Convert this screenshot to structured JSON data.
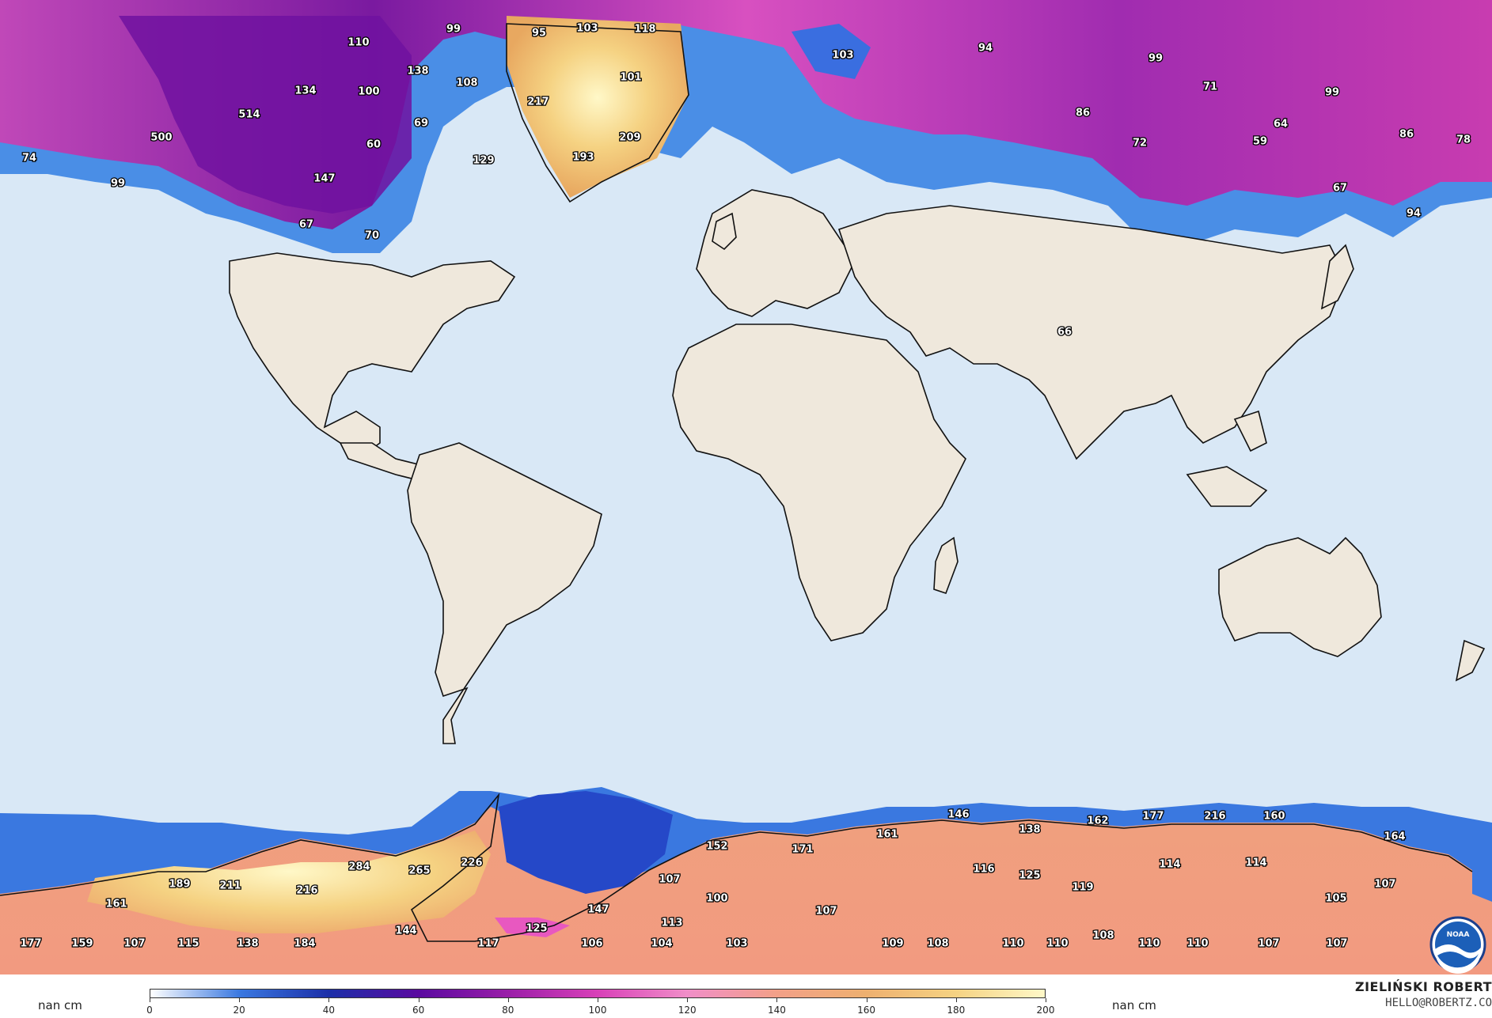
{
  "colors": {
    "ocean": "#d9e8f6",
    "land": "#efe8dc",
    "scale": [
      "#ffffff",
      "#3a78e0",
      "#1c2fa8",
      "#5a0aa0",
      "#9a1ea8",
      "#d840b8",
      "#f08ec8",
      "#f2a088",
      "#eeb070",
      "#f5d282",
      "#fff8c8"
    ]
  },
  "map": {
    "value_labels": [
      {
        "text": "110"
      },
      {
        "text": "99"
      },
      {
        "text": "95"
      },
      {
        "text": "103"
      },
      {
        "text": "118"
      },
      {
        "text": "103"
      },
      {
        "text": "94"
      },
      {
        "text": "99"
      },
      {
        "text": "138"
      },
      {
        "text": "108"
      },
      {
        "text": "101"
      },
      {
        "text": "134"
      },
      {
        "text": "100"
      },
      {
        "text": "217"
      },
      {
        "text": "71"
      },
      {
        "text": "99"
      },
      {
        "text": "514"
      },
      {
        "text": "69"
      },
      {
        "text": "86"
      },
      {
        "text": "64"
      },
      {
        "text": "86"
      },
      {
        "text": "74"
      },
      {
        "text": "500"
      },
      {
        "text": "60"
      },
      {
        "text": "209"
      },
      {
        "text": "72"
      },
      {
        "text": "59"
      },
      {
        "text": "78"
      },
      {
        "text": "193"
      },
      {
        "text": "129"
      },
      {
        "text": "99"
      },
      {
        "text": "147"
      },
      {
        "text": "67"
      },
      {
        "text": "67"
      },
      {
        "text": "70"
      },
      {
        "text": "94"
      },
      {
        "text": "66"
      },
      {
        "text": "146"
      },
      {
        "text": "162"
      },
      {
        "text": "177"
      },
      {
        "text": "216"
      },
      {
        "text": "160"
      },
      {
        "text": "161"
      },
      {
        "text": "138"
      },
      {
        "text": "164"
      },
      {
        "text": "152"
      },
      {
        "text": "171"
      },
      {
        "text": "284"
      },
      {
        "text": "265"
      },
      {
        "text": "226"
      },
      {
        "text": "116"
      },
      {
        "text": "125"
      },
      {
        "text": "114"
      },
      {
        "text": "114"
      },
      {
        "text": "189"
      },
      {
        "text": "211"
      },
      {
        "text": "216"
      },
      {
        "text": "107"
      },
      {
        "text": "119"
      },
      {
        "text": "107"
      },
      {
        "text": "161"
      },
      {
        "text": "100"
      },
      {
        "text": "105"
      },
      {
        "text": "147"
      },
      {
        "text": "107"
      },
      {
        "text": "144"
      },
      {
        "text": "125"
      },
      {
        "text": "113"
      },
      {
        "text": "108"
      },
      {
        "text": "177"
      },
      {
        "text": "159"
      },
      {
        "text": "107"
      },
      {
        "text": "115"
      },
      {
        "text": "138"
      },
      {
        "text": "184"
      },
      {
        "text": "117"
      },
      {
        "text": "106"
      },
      {
        "text": "104"
      },
      {
        "text": "103"
      },
      {
        "text": "109"
      },
      {
        "text": "108"
      },
      {
        "text": "110"
      },
      {
        "text": "110"
      },
      {
        "text": "110"
      },
      {
        "text": "110"
      },
      {
        "text": "107"
      },
      {
        "text": "107"
      }
    ]
  },
  "legend": {
    "unit_left": "nan cm",
    "unit_right": "nan cm",
    "range": [
      0,
      200
    ],
    "ticks": [
      "0",
      "20",
      "40",
      "60",
      "80",
      "100",
      "120",
      "140",
      "160",
      "180",
      "200"
    ]
  },
  "credit": {
    "name": "ZIELIŃSKI ROBERT",
    "email": "HELLO@ROBERTZ.CO"
  },
  "logo": {
    "text": "NOAA"
  }
}
